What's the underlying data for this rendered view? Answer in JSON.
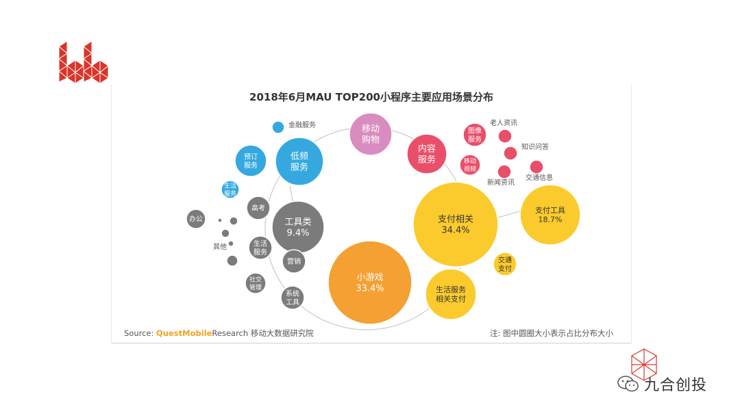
{
  "chart_data": {
    "type": "bubble",
    "title": "2018年6月MAU TOP200小程序主要应用场景分布",
    "colors": {
      "pink": "#d98cbf",
      "red": "#e94f6a",
      "blue": "#35a9df",
      "gray": "#7b7b7b",
      "yellow": "#fbcb2e",
      "orange": "#f5a033",
      "connector": "#c9c9c9"
    },
    "bubbles": [
      {
        "id": "mobile-shopping",
        "label": "移动\n购物",
        "color": "pink"
      },
      {
        "id": "content-service",
        "label": "内容\n服务",
        "color": "red"
      },
      {
        "id": "image-service",
        "label": "图像\n服务",
        "color": "red"
      },
      {
        "id": "mobile-video",
        "label": "移动\n视频",
        "color": "red"
      },
      {
        "id": "elderly-news",
        "label": "",
        "color": "red"
      },
      {
        "id": "qa",
        "label": "",
        "color": "red"
      },
      {
        "id": "news",
        "label": "",
        "color": "red"
      },
      {
        "id": "traffic-info",
        "label": "",
        "color": "red"
      },
      {
        "id": "low-freq-service",
        "label": "低频\n服务",
        "color": "blue"
      },
      {
        "id": "booking-service",
        "label": "预订\n服务",
        "color": "blue"
      },
      {
        "id": "life-service-blue",
        "label": "生活\n服务",
        "color": "blue"
      },
      {
        "id": "finance-service",
        "label": "",
        "color": "blue"
      },
      {
        "id": "tools",
        "label": "工具类\n9.4%",
        "value": 9.4,
        "color": "gray"
      },
      {
        "id": "gaokao",
        "label": "高考",
        "color": "gray"
      },
      {
        "id": "office",
        "label": "办公",
        "color": "gray"
      },
      {
        "id": "dot-1",
        "label": "",
        "color": "gray"
      },
      {
        "id": "dot-2",
        "label": "",
        "color": "gray"
      },
      {
        "id": "dot-3",
        "label": "",
        "color": "gray"
      },
      {
        "id": "dot-4",
        "label": "",
        "color": "gray"
      },
      {
        "id": "dot-5",
        "label": "",
        "color": "gray"
      },
      {
        "id": "life-service-gray",
        "label": "生活\n服务",
        "color": "gray"
      },
      {
        "id": "marketing",
        "label": "营销",
        "color": "gray"
      },
      {
        "id": "social-mgmt",
        "label": "社交\n管理",
        "color": "gray"
      },
      {
        "id": "system-tools",
        "label": "系统\n工具",
        "color": "gray"
      },
      {
        "id": "payment",
        "label": "支付相关\n34.4%",
        "value": 34.4,
        "color": "yellow"
      },
      {
        "id": "payment-tools",
        "label": "支付工具\n18.7%",
        "value": 18.7,
        "color": "yellow"
      },
      {
        "id": "traffic-payment",
        "label": "交通\n支付",
        "color": "yellow"
      },
      {
        "id": "life-payment",
        "label": "生活服务\n相关支付",
        "color": "yellow"
      },
      {
        "id": "mini-games",
        "label": "小游戏\n33.4%",
        "value": 33.4,
        "color": "orange"
      }
    ],
    "outside_labels": [
      {
        "id": "finance-label",
        "text": "金融服务"
      },
      {
        "id": "elderly-news-label",
        "text": "老人资讯"
      },
      {
        "id": "qa-label",
        "text": "知识问答"
      },
      {
        "id": "news-label",
        "text": "新闻资讯"
      },
      {
        "id": "traffic-info-label",
        "text": "交通信息"
      },
      {
        "id": "other-label",
        "text": "其他"
      }
    ]
  },
  "footer": {
    "source_prefix": "Source:",
    "brand_quest": "QuestMobile",
    "brand_research": "Research",
    "source_suffix": "移动大数据研究院",
    "note": "注:  图中圆圈大小表示占比分布大小"
  },
  "watermark": {
    "text": "九合创投"
  }
}
